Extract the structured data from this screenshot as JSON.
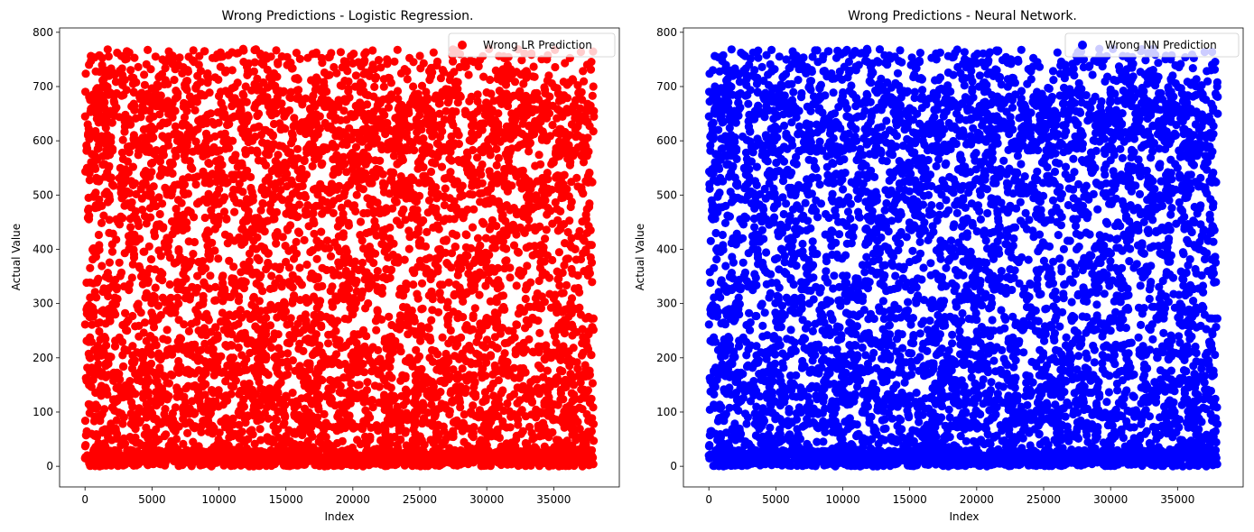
{
  "chart_data": [
    {
      "type": "scatter",
      "title": "Wrong Predictions - Logistic Regression.",
      "xlabel": "Index",
      "ylabel": "Actual Value",
      "xlim": [
        -1900,
        39900
      ],
      "ylim": [
        -38,
        808
      ],
      "xticks": [
        0,
        5000,
        10000,
        15000,
        20000,
        25000,
        30000,
        35000
      ],
      "yticks": [
        0,
        100,
        200,
        300,
        400,
        500,
        600,
        700,
        800
      ],
      "legend_position": "top-right",
      "grid": false,
      "series": [
        {
          "name": "Wrong LR Prediction",
          "color": "#ff0000",
          "x_range": [
            0,
            38000
          ],
          "y_range": [
            0,
            770
          ],
          "point_count_estimate": 6000,
          "points": [
            [
              0,
              15
            ],
            [
              150,
              550
            ],
            [
              300,
              740
            ],
            [
              500,
              660
            ],
            [
              700,
              610
            ],
            [
              900,
              20
            ],
            [
              1200,
              130
            ],
            [
              1500,
              700
            ],
            [
              1800,
              430
            ],
            [
              2200,
              280
            ],
            [
              2600,
              160
            ],
            [
              3000,
              750
            ],
            [
              3400,
              630
            ],
            [
              3800,
              470
            ],
            [
              4200,
              350
            ],
            [
              4600,
              90
            ],
            [
              5000,
              10
            ],
            [
              5500,
              200
            ],
            [
              6000,
              660
            ],
            [
              6500,
              560
            ],
            [
              7000,
              400
            ],
            [
              7500,
              310
            ],
            [
              8000,
              120
            ],
            [
              8500,
              740
            ],
            [
              9000,
              640
            ],
            [
              9500,
              5
            ],
            [
              10000,
              460
            ],
            [
              10500,
              270
            ],
            [
              11000,
              170
            ],
            [
              11500,
              60
            ],
            [
              12000,
              700
            ],
            [
              12500,
              600
            ],
            [
              13000,
              380
            ],
            [
              13500,
              250
            ],
            [
              14000,
              140
            ],
            [
              14500,
              20
            ],
            [
              15000,
              650
            ],
            [
              15500,
              520
            ],
            [
              16000,
              430
            ],
            [
              16500,
              310
            ],
            [
              17000,
              760
            ],
            [
              17500,
              180
            ],
            [
              18000,
              80
            ],
            [
              18500,
              660
            ],
            [
              19000,
              560
            ],
            [
              19500,
              360
            ],
            [
              20000,
              280
            ],
            [
              20500,
              150
            ],
            [
              21000,
              10
            ],
            [
              21500,
              740
            ],
            [
              22000,
              640
            ],
            [
              22500,
              470
            ],
            [
              23000,
              390
            ],
            [
              23500,
              220
            ],
            [
              24000,
              120
            ],
            [
              24500,
              700
            ],
            [
              25000,
              600
            ],
            [
              25500,
              5
            ],
            [
              26000,
              440
            ],
            [
              26500,
              320
            ],
            [
              27000,
              170
            ],
            [
              27500,
              60
            ],
            [
              28000,
              760
            ],
            [
              28500,
              650
            ],
            [
              29000,
              530
            ],
            [
              29500,
              380
            ],
            [
              30000,
              260
            ],
            [
              30500,
              130
            ],
            [
              31000,
              20
            ],
            [
              31500,
              720
            ],
            [
              32000,
              610
            ],
            [
              32500,
              440
            ],
            [
              33000,
              330
            ],
            [
              33500,
              210
            ],
            [
              34000,
              100
            ],
            [
              34500,
              670
            ],
            [
              35000,
              560
            ],
            [
              35500,
              470
            ],
            [
              36000,
              290
            ],
            [
              36500,
              150
            ],
            [
              37000,
              10
            ],
            [
              37500,
              740
            ],
            [
              38000,
              655
            ]
          ]
        }
      ]
    },
    {
      "type": "scatter",
      "title": "Wrong Predictions - Neural Network.",
      "xlabel": "Index",
      "ylabel": "Actual Value",
      "xlim": [
        -1900,
        39900
      ],
      "ylim": [
        -38,
        808
      ],
      "xticks": [
        0,
        5000,
        10000,
        15000,
        20000,
        25000,
        30000,
        35000
      ],
      "yticks": [
        0,
        100,
        200,
        300,
        400,
        500,
        600,
        700,
        800
      ],
      "legend_position": "top-right",
      "grid": false,
      "series": [
        {
          "name": "Wrong NN Prediction",
          "color": "#0000ff",
          "x_range": [
            0,
            38000
          ],
          "y_range": [
            0,
            770
          ],
          "point_count_estimate": 6000,
          "points": [
            [
              0,
              20
            ],
            [
              150,
              540
            ],
            [
              300,
              730
            ],
            [
              500,
              650
            ],
            [
              700,
              620
            ],
            [
              900,
              15
            ],
            [
              1200,
              140
            ],
            [
              1500,
              690
            ],
            [
              1800,
              420
            ],
            [
              2200,
              290
            ],
            [
              2600,
              150
            ],
            [
              3000,
              740
            ],
            [
              3400,
              640
            ],
            [
              3800,
              460
            ],
            [
              4200,
              360
            ],
            [
              4600,
              100
            ],
            [
              5000,
              15
            ],
            [
              5500,
              190
            ],
            [
              6000,
              650
            ],
            [
              6500,
              570
            ],
            [
              7000,
              410
            ],
            [
              7500,
              300
            ],
            [
              8000,
              130
            ],
            [
              8500,
              750
            ],
            [
              9000,
              630
            ],
            [
              9500,
              10
            ],
            [
              10000,
              450
            ],
            [
              10500,
              280
            ],
            [
              11000,
              160
            ],
            [
              11500,
              50
            ],
            [
              12000,
              710
            ],
            [
              12500,
              590
            ],
            [
              13000,
              370
            ],
            [
              13500,
              260
            ],
            [
              14000,
              150
            ],
            [
              14500,
              25
            ],
            [
              15000,
              660
            ],
            [
              15500,
              510
            ],
            [
              16000,
              440
            ],
            [
              16500,
              300
            ],
            [
              17000,
              750
            ],
            [
              17500,
              190
            ],
            [
              18000,
              90
            ],
            [
              18500,
              650
            ],
            [
              19000,
              550
            ],
            [
              19500,
              370
            ],
            [
              20000,
              270
            ],
            [
              20500,
              160
            ],
            [
              21000,
              15
            ],
            [
              21500,
              730
            ],
            [
              22000,
              630
            ],
            [
              22500,
              480
            ],
            [
              23000,
              380
            ],
            [
              23500,
              210
            ],
            [
              24000,
              130
            ],
            [
              24500,
              690
            ],
            [
              25000,
              610
            ],
            [
              25500,
              10
            ],
            [
              26000,
              450
            ],
            [
              26500,
              310
            ],
            [
              27000,
              180
            ],
            [
              27500,
              70
            ],
            [
              28000,
              750
            ],
            [
              28500,
              660
            ],
            [
              29000,
              520
            ],
            [
              29500,
              390
            ],
            [
              30000,
              250
            ],
            [
              30500,
              140
            ],
            [
              31000,
              25
            ],
            [
              31500,
              710
            ],
            [
              32000,
              620
            ],
            [
              32500,
              450
            ],
            [
              33000,
              340
            ],
            [
              33500,
              200
            ],
            [
              34000,
              110
            ],
            [
              34500,
              680
            ],
            [
              35000,
              550
            ],
            [
              35500,
              460
            ],
            [
              36000,
              280
            ],
            [
              36500,
              160
            ],
            [
              37000,
              15
            ],
            [
              37500,
              730
            ],
            [
              38000,
              650
            ]
          ]
        }
      ]
    }
  ]
}
